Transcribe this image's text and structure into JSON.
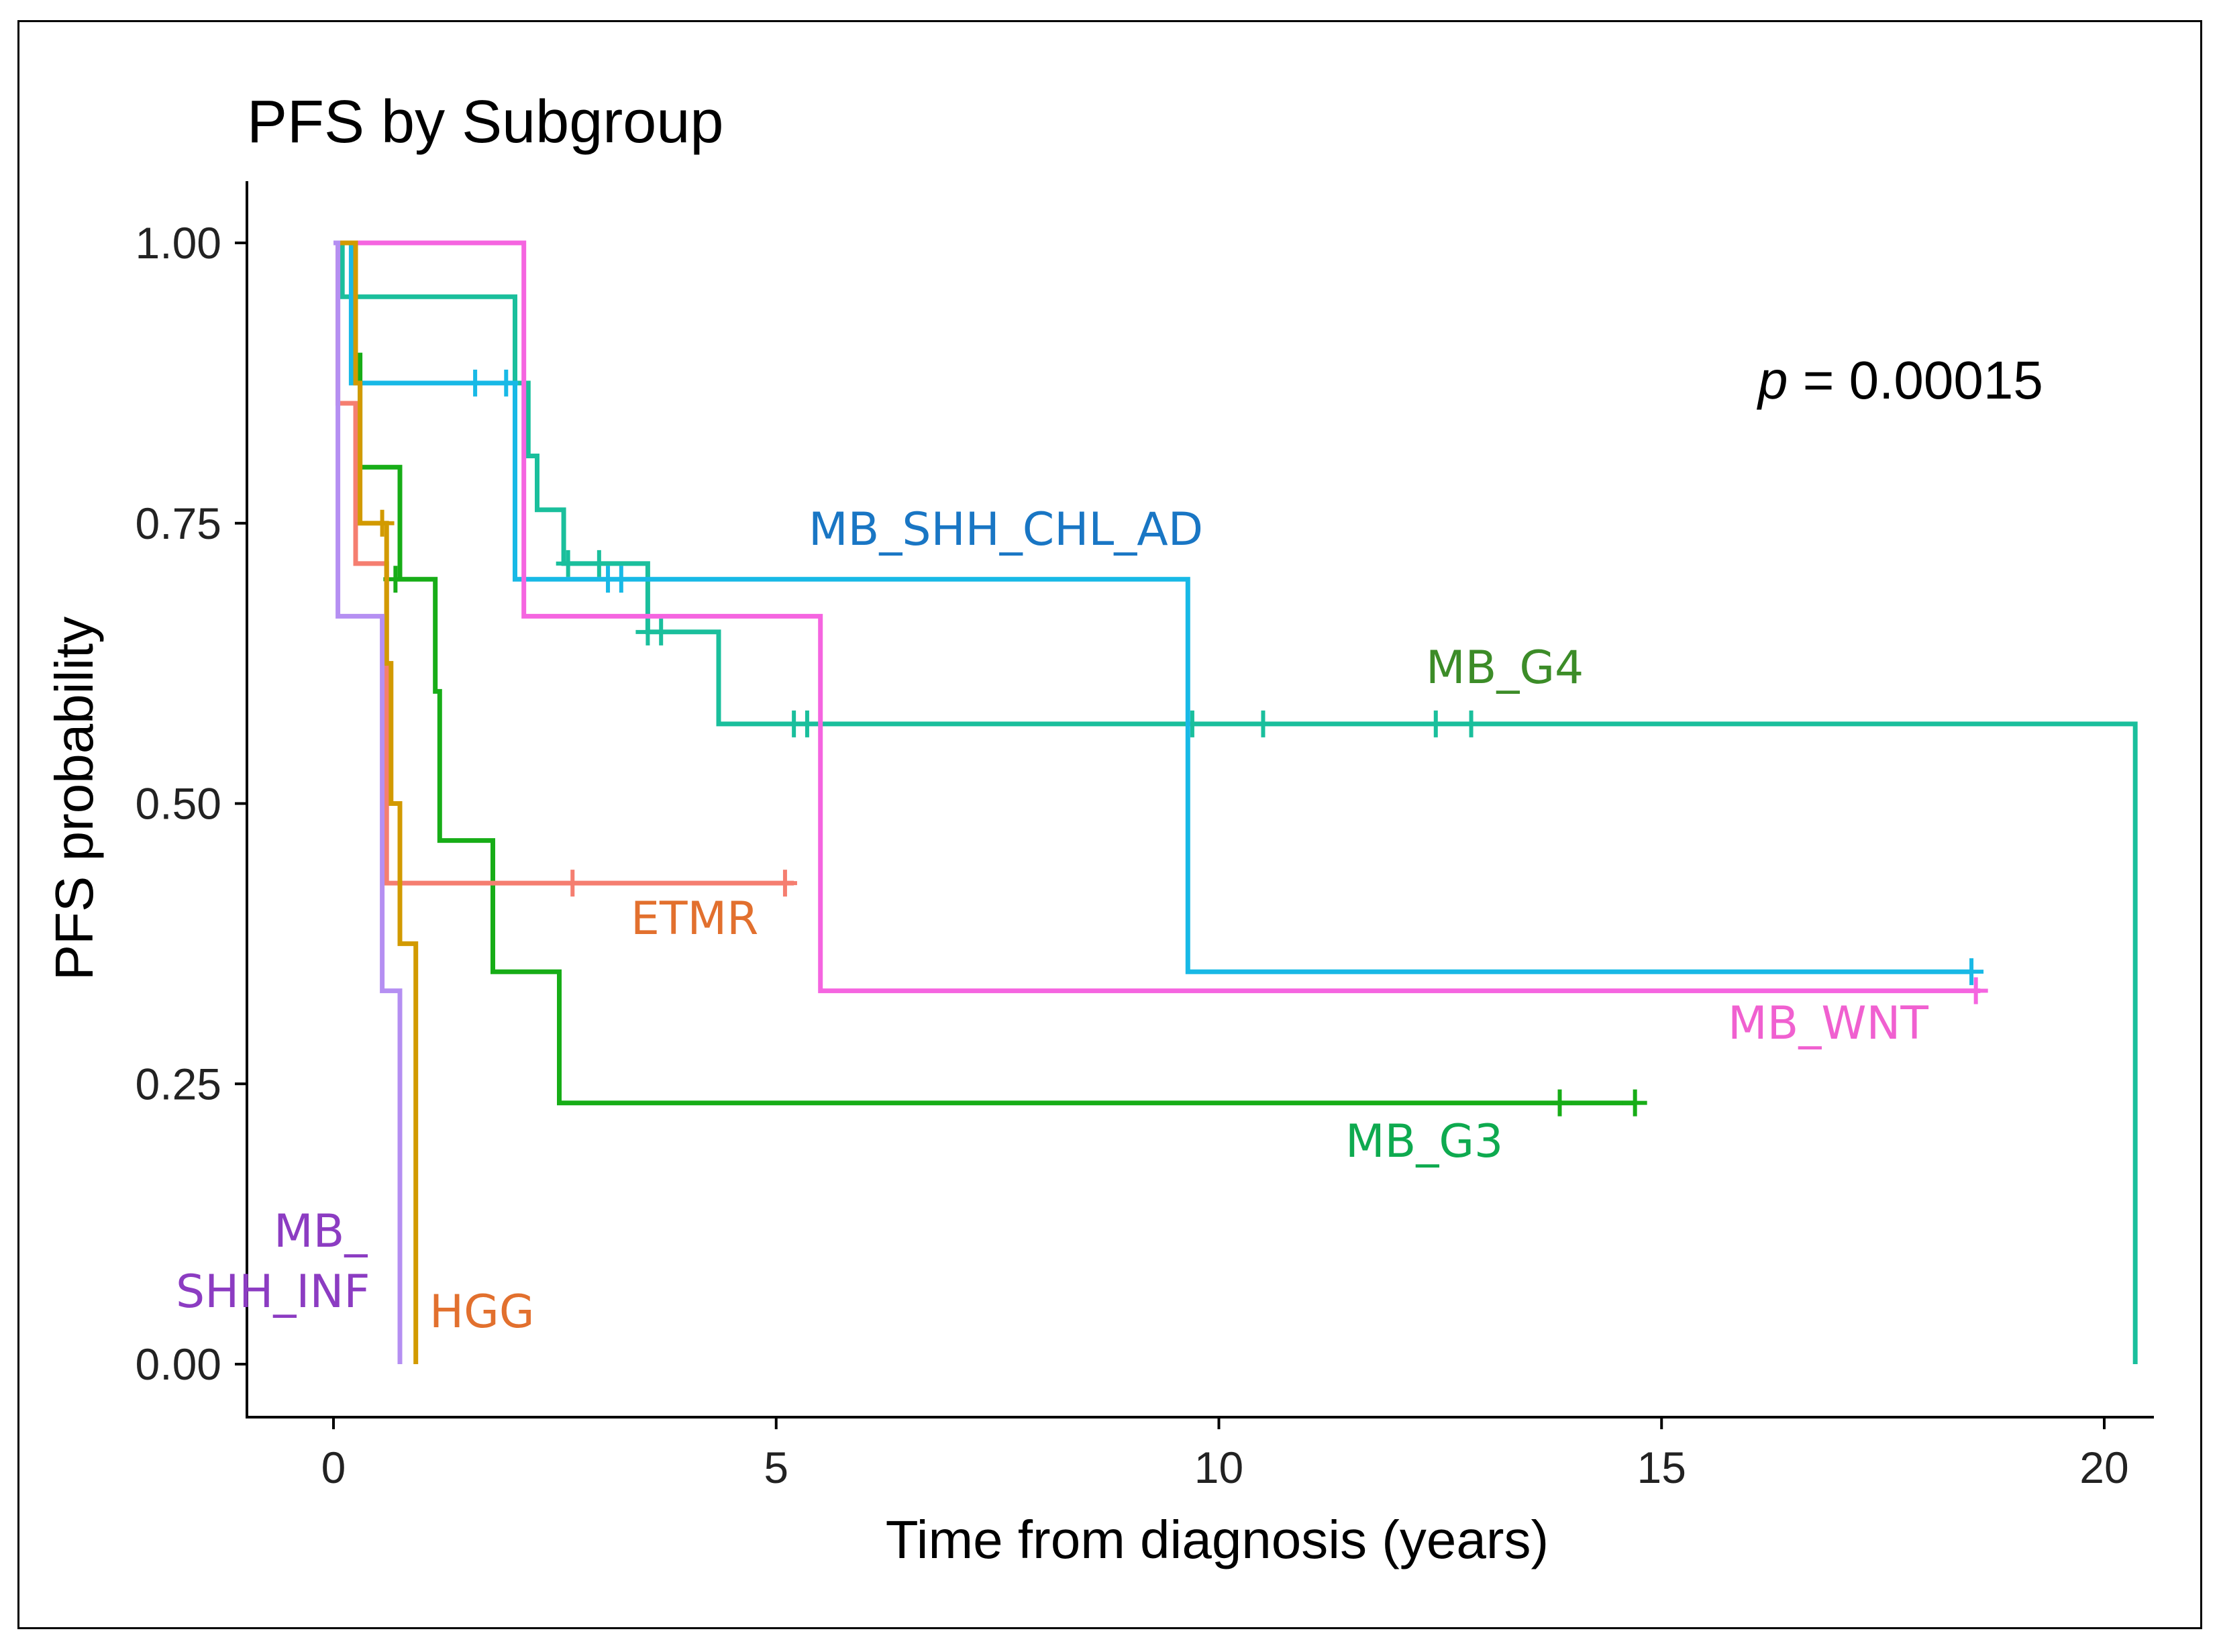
{
  "chart_data": {
    "type": "line",
    "subtype": "kaplan-meier step",
    "title": "PFS by Subgroup",
    "xlabel": "Time from diagnosis (years)",
    "ylabel": "PFS probability",
    "xlim": [
      -1,
      20.6
    ],
    "ylim": [
      -0.05,
      1.055
    ],
    "xticks": [
      0,
      5,
      10,
      15,
      20
    ],
    "xtick_labels": [
      "0",
      "5",
      "10",
      "15",
      "20"
    ],
    "yticks": [
      0,
      0.25,
      0.5,
      0.75,
      1.0
    ],
    "ytick_labels": [
      "0.00",
      "0.25",
      "0.50",
      "0.75",
      "1.00"
    ],
    "annotation": {
      "prefix": "p",
      "text": " = 0.00015"
    },
    "series": [
      {
        "name": "MB_G4",
        "label": "MB_G4",
        "color": "#1ABF9C",
        "label_color": "#3C8C28",
        "steps": [
          [
            0,
            1.0
          ],
          [
            0.1,
            0.952
          ],
          [
            1.95,
            0.952
          ],
          [
            2.05,
            0.875
          ],
          [
            2.2,
            0.81
          ],
          [
            2.3,
            0.762
          ],
          [
            2.6,
            0.714
          ],
          [
            3.55,
            0.653
          ],
          [
            4.3,
            0.653
          ],
          [
            4.35,
            0.571
          ],
          [
            20.35,
            0.571
          ],
          [
            20.35,
            0.0
          ]
        ],
        "censors": [
          [
            2.65,
            0.714
          ],
          [
            3.0,
            0.714
          ],
          [
            3.55,
            0.653
          ],
          [
            3.7,
            0.653
          ],
          [
            5.2,
            0.571
          ],
          [
            5.35,
            0.571
          ],
          [
            9.7,
            0.571
          ],
          [
            10.5,
            0.571
          ],
          [
            12.45,
            0.571
          ],
          [
            12.85,
            0.571
          ]
        ]
      },
      {
        "name": "MB_SHH_CHL_AD",
        "label": "MB_SHH_CHL_AD",
        "color": "#18B9E6",
        "label_color": "#1976C4",
        "steps": [
          [
            0,
            1.0
          ],
          [
            0.2,
            0.875
          ],
          [
            2.05,
            0.875
          ],
          [
            2.05,
            0.7
          ],
          [
            9.65,
            0.7
          ],
          [
            9.65,
            0.35
          ],
          [
            18.5,
            0.35
          ]
        ],
        "censors": [
          [
            1.6,
            0.875
          ],
          [
            1.95,
            0.875
          ],
          [
            3.1,
            0.7
          ],
          [
            3.25,
            0.7
          ],
          [
            18.5,
            0.35
          ]
        ]
      },
      {
        "name": "MB_WNT",
        "label": "MB_WNT",
        "color": "#F565E0",
        "label_color": "#F060D0",
        "steps": [
          [
            0,
            1.0
          ],
          [
            2.15,
            1.0
          ],
          [
            2.15,
            0.667
          ],
          [
            5.5,
            0.667
          ],
          [
            5.5,
            0.333
          ],
          [
            18.6,
            0.333
          ]
        ],
        "censors": [
          [
            18.55,
            0.333
          ]
        ]
      },
      {
        "name": "MB_G3",
        "label": "MB_G3",
        "color": "#17AD17",
        "label_color": "#0EAA4F",
        "steps": [
          [
            0,
            1.0
          ],
          [
            0.25,
            0.9
          ],
          [
            0.3,
            0.8
          ],
          [
            0.75,
            0.8
          ],
          [
            0.75,
            0.7
          ],
          [
            1.1,
            0.7
          ],
          [
            1.15,
            0.6
          ],
          [
            1.2,
            0.467
          ],
          [
            1.8,
            0.467
          ],
          [
            1.8,
            0.35
          ],
          [
            2.55,
            0.35
          ],
          [
            2.55,
            0.233
          ],
          [
            14.7,
            0.233
          ]
        ],
        "censors": [
          [
            0.7,
            0.7
          ],
          [
            13.85,
            0.233
          ],
          [
            14.7,
            0.233
          ]
        ]
      },
      {
        "name": "ETMR",
        "label": "ETMR",
        "color": "#F57E70",
        "label_color": "#E2702E",
        "steps": [
          [
            0,
            1.0
          ],
          [
            0.05,
            0.857
          ],
          [
            0.2,
            0.857
          ],
          [
            0.25,
            0.714
          ],
          [
            0.6,
            0.714
          ],
          [
            0.6,
            0.429
          ],
          [
            5.2,
            0.429
          ]
        ],
        "censors": [
          [
            0.75,
            0.429
          ],
          [
            2.7,
            0.429
          ],
          [
            5.1,
            0.429
          ]
        ]
      },
      {
        "name": "HGG",
        "label": "HGG",
        "color": "#D29A00",
        "label_color": "#E2702E",
        "steps": [
          [
            0,
            1.0
          ],
          [
            0.25,
            0.875
          ],
          [
            0.3,
            0.75
          ],
          [
            0.6,
            0.75
          ],
          [
            0.6,
            0.625
          ],
          [
            0.65,
            0.5
          ],
          [
            0.75,
            0.5
          ],
          [
            0.75,
            0.375
          ],
          [
            0.93,
            0.375
          ],
          [
            0.93,
            0.0
          ]
        ],
        "censors": [
          [
            0.55,
            0.75
          ]
        ]
      },
      {
        "name": "MB_SHH_INF",
        "label_line1": "MB_",
        "label_line2": "SHH_INF",
        "color": "#B58FF2",
        "label_color": "#8C3CC2",
        "steps": [
          [
            0,
            1.0
          ],
          [
            0.05,
            0.857
          ],
          [
            0.05,
            0.667
          ],
          [
            0.55,
            0.667
          ],
          [
            0.55,
            0.333
          ],
          [
            0.75,
            0.333
          ],
          [
            0.75,
            0.0
          ]
        ],
        "censors": []
      }
    ]
  }
}
